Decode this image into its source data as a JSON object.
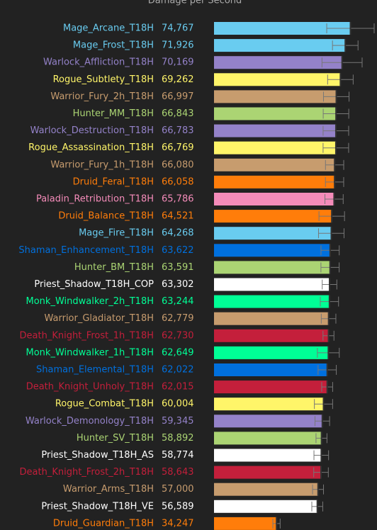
{
  "chart_data": {
    "type": "bar",
    "orientation": "horizontal",
    "title": "Damage per Second",
    "categories": [
      "Mage_Arcane_T18H",
      "Mage_Frost_T18H",
      "Warlock_Affliction_T18H",
      "Rogue_Subtlety_T18H",
      "Warrior_Fury_2h_T18H",
      "Hunter_MM_T18H",
      "Warlock_Destruction_T18H",
      "Rogue_Assassination_T18H",
      "Warrior_Fury_1h_T18H",
      "Druid_Feral_T18H",
      "Paladin_Retribution_T18H",
      "Druid_Balance_T18H",
      "Mage_Fire_T18H",
      "Shaman_Enhancement_T18H",
      "Hunter_BM_T18H",
      "Priest_Shadow_T18H_COP",
      "Monk_Windwalker_2h_T18H",
      "Warrior_Gladiator_T18H",
      "Death_Knight_Frost_1h_T18H",
      "Monk_Windwalker_1h_T18H",
      "Shaman_Elemental_T18H",
      "Death_Knight_Unholy_T18H",
      "Rogue_Combat_T18H",
      "Warlock_Demonology_T18H",
      "Hunter_SV_T18H",
      "Priest_Shadow_T18H_AS",
      "Death_Knight_Frost_2h_T18H",
      "Warrior_Arms_T18H",
      "Priest_Shadow_T18H_VE",
      "Druid_Guardian_T18H"
    ],
    "values": [
      74767,
      71926,
      70169,
      69262,
      66997,
      66843,
      66783,
      66769,
      66080,
      66058,
      65786,
      64521,
      64268,
      63622,
      63591,
      63302,
      63244,
      62779,
      62730,
      62649,
      62022,
      62015,
      60004,
      59345,
      58892,
      58774,
      58643,
      57000,
      56589,
      34247
    ],
    "value_labels": [
      "74,767",
      "71,926",
      "70,169",
      "69,262",
      "66,997",
      "66,843",
      "66,783",
      "66,769",
      "66,080",
      "66,058",
      "65,786",
      "64,521",
      "64,268",
      "63,622",
      "63,591",
      "63,302",
      "63,244",
      "62,779",
      "62,730",
      "62,649",
      "62,022",
      "62,015",
      "60,004",
      "59,345",
      "58,892",
      "58,774",
      "58,643",
      "57,000",
      "56,589",
      "34,247"
    ],
    "errors": [
      13000,
      7000,
      11000,
      7000,
      7000,
      7000,
      7000,
      7000,
      5000,
      5000,
      5000,
      7000,
      7000,
      5000,
      5000,
      4000,
      5000,
      4000,
      3000,
      6000,
      5000,
      3000,
      5000,
      4000,
      3000,
      4000,
      4000,
      3000,
      3000,
      2000
    ],
    "colors": [
      "#69ccf0",
      "#69ccf0",
      "#9482c9",
      "#fff569",
      "#c79c6e",
      "#abd473",
      "#9482c9",
      "#fff569",
      "#c79c6e",
      "#ff7d0a",
      "#f58cba",
      "#ff7d0a",
      "#69ccf0",
      "#0070de",
      "#abd473",
      "#ffffff",
      "#00ff96",
      "#c79c6e",
      "#c41f3b",
      "#00ff96",
      "#0070de",
      "#c41f3b",
      "#fff569",
      "#9482c9",
      "#abd473",
      "#ffffff",
      "#c41f3b",
      "#c79c6e",
      "#ffffff",
      "#ff7d0a"
    ],
    "xlim": [
      0,
      80000
    ]
  }
}
